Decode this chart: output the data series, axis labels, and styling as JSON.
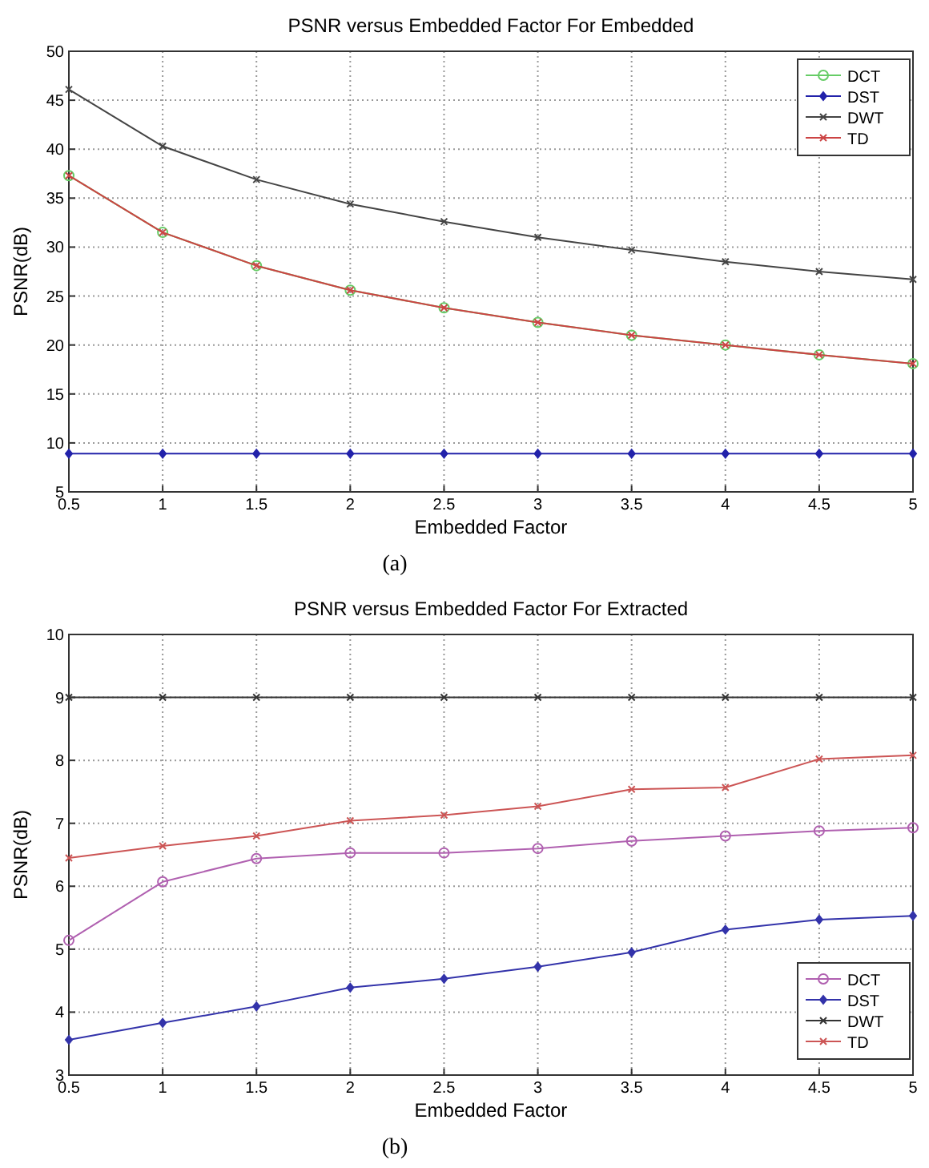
{
  "chart_data": [
    {
      "type": "line",
      "title": "PSNR versus Embedded Factor For Embedded",
      "xlabel": "Embedded Factor",
      "ylabel": "PSNR(dB)",
      "annotations": [
        "(a)"
      ],
      "x": [
        0.5,
        1,
        1.5,
        2,
        2.5,
        3,
        3.5,
        4,
        4.5,
        5
      ],
      "xlim": [
        0.5,
        5
      ],
      "xticks": [
        0.5,
        1,
        1.5,
        2,
        2.5,
        3,
        3.5,
        4,
        4.5,
        5
      ],
      "ylim": [
        5,
        50
      ],
      "yticks": [
        5,
        10,
        15,
        20,
        25,
        30,
        35,
        40,
        45,
        50
      ],
      "grid": true,
      "legend": "top right",
      "line_style": "solid",
      "series": [
        {
          "name": "DCT",
          "color": "#66cc66",
          "marker": "circle",
          "values": [
            37.3,
            31.5,
            28.1,
            25.6,
            23.8,
            22.3,
            21.0,
            20.0,
            19.0,
            18.1
          ]
        },
        {
          "name": "DST",
          "color": "#2222aa",
          "marker": "diamond",
          "values": [
            8.9,
            8.9,
            8.9,
            8.9,
            8.9,
            8.9,
            8.9,
            8.9,
            8.9,
            8.9
          ]
        },
        {
          "name": "DWT",
          "color": "#444444",
          "marker": "cross",
          "values": [
            46.1,
            40.3,
            36.9,
            34.4,
            32.6,
            31.0,
            29.7,
            28.5,
            27.5,
            26.7
          ]
        },
        {
          "name": "TD",
          "color": "#cc4444",
          "marker": "cross",
          "values": [
            37.3,
            31.5,
            28.1,
            25.6,
            23.8,
            22.3,
            21.0,
            20.0,
            19.0,
            18.1
          ]
        }
      ]
    },
    {
      "type": "line",
      "title": "PSNR versus Embedded Factor For Extracted",
      "xlabel": "Embedded Factor",
      "ylabel": "PSNR(dB)",
      "annotations": [
        "(b)"
      ],
      "x": [
        0.5,
        1,
        1.5,
        2,
        2.5,
        3,
        3.5,
        4,
        4.5,
        5
      ],
      "xlim": [
        0.5,
        5
      ],
      "xticks": [
        0.5,
        1,
        1.5,
        2,
        2.5,
        3,
        3.5,
        4,
        4.5,
        5
      ],
      "ylim": [
        3,
        10
      ],
      "yticks": [
        3,
        4,
        5,
        6,
        7,
        8,
        9,
        10
      ],
      "grid": true,
      "legend": "bottom right",
      "line_style": "solid",
      "series": [
        {
          "name": "DCT",
          "color": "#b060b0",
          "marker": "circle",
          "values": [
            5.14,
            6.07,
            6.44,
            6.53,
            6.53,
            6.6,
            6.72,
            6.8,
            6.88,
            6.93
          ]
        },
        {
          "name": "DST",
          "color": "#3333aa",
          "marker": "diamond",
          "values": [
            3.56,
            3.83,
            4.09,
            4.39,
            4.53,
            4.72,
            4.95,
            5.31,
            5.47,
            5.53
          ]
        },
        {
          "name": "DWT",
          "color": "#333333",
          "marker": "cross",
          "values": [
            9,
            9,
            9,
            9,
            9,
            9,
            9,
            9,
            9,
            9
          ]
        },
        {
          "name": "TD",
          "color": "#cc5555",
          "marker": "cross",
          "values": [
            6.45,
            6.64,
            6.8,
            7.04,
            7.13,
            7.27,
            7.54,
            7.57,
            8.02,
            8.08
          ]
        }
      ]
    }
  ]
}
